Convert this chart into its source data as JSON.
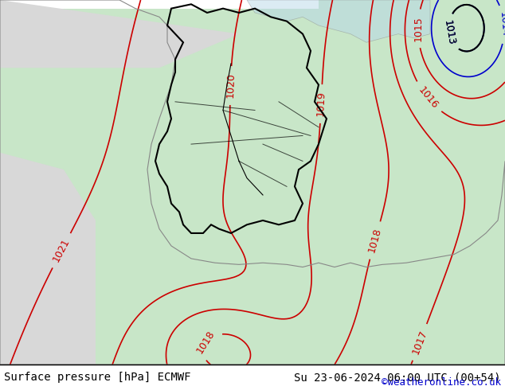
{
  "title_left": "Surface pressure [hPa] ECMWF",
  "title_right": "Su 23-06-2024 06:00 UTC (00+54)",
  "credit": "©weatheronline.co.uk",
  "bg_color_main": "#c8e6c8",
  "bg_color_outside": "#d8d8d8",
  "bg_color_sea": "#d0e8f0",
  "border_color": "#000000",
  "contour_color_red": "#cc0000",
  "contour_color_blue": "#0000cc",
  "contour_color_black": "#000000",
  "label_fontsize": 9,
  "footer_fontsize": 10,
  "credit_fontsize": 9,
  "credit_color": "#0000cc"
}
